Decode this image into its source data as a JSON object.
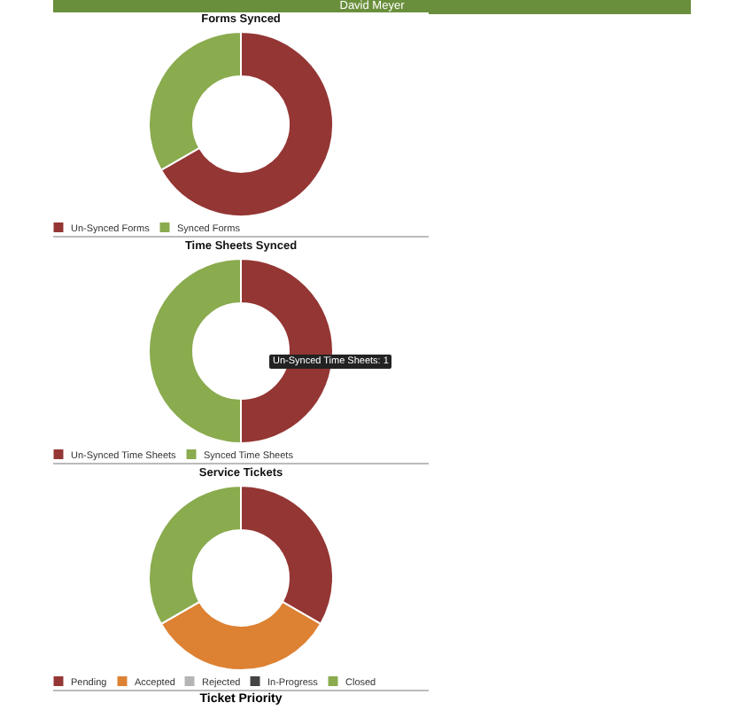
{
  "chart_data": [
    {
      "type": "other",
      "title": "David Meyer"
    },
    {
      "type": "donut",
      "title": "Forms Synced",
      "categories": [
        "Un-Synced Forms",
        "Synced Forms"
      ],
      "values": [
        66.7,
        33.3
      ],
      "colors": [
        "#943634",
        "#8aab4e"
      ],
      "legend": "bottom"
    },
    {
      "type": "donut",
      "title": "Time Sheets Synced",
      "categories": [
        "Un-Synced Time Sheets",
        "Synced Time Sheets"
      ],
      "values": [
        50,
        50
      ],
      "colors": [
        "#943634",
        "#8aab4e"
      ],
      "legend": "bottom",
      "annotations": [
        "Un-Synced Time Sheets: 1"
      ]
    },
    {
      "type": "donut",
      "title": "Service Tickets",
      "categories": [
        "Pending",
        "Accepted",
        "Rejected",
        "In-Progress",
        "Closed"
      ],
      "values": [
        33.3,
        33.4,
        0,
        0,
        33.3
      ],
      "colors": [
        "#943634",
        "#dd8133",
        "#b5b5b5",
        "#444444",
        "#8aab4e"
      ],
      "legend": "bottom"
    },
    {
      "type": "other",
      "title": "Ticket Priority"
    }
  ]
}
